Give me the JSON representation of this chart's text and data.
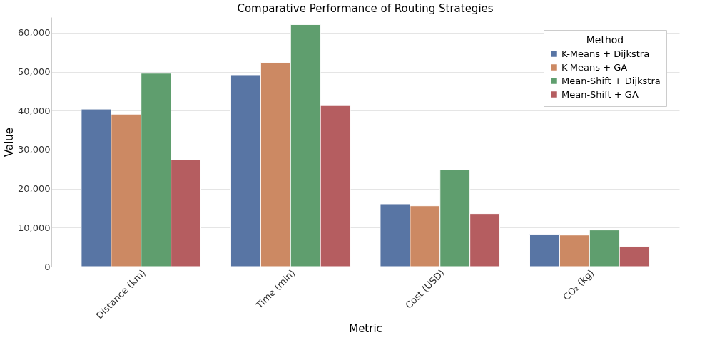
{
  "chart_data": {
    "type": "bar",
    "title": "Comparative Performance of Routing Strategies",
    "xlabel": "Metric",
    "ylabel": "Value",
    "legend_title": "Method",
    "categories": [
      "Distance (km)",
      "Time (min)",
      "Cost (USD)",
      "CO₂ (kg)"
    ],
    "series": [
      {
        "name": "K-Means + Dijkstra",
        "color": "#5875a4",
        "values": [
          40400,
          49200,
          16100,
          8300
        ]
      },
      {
        "name": "K-Means + GA",
        "color": "#cc8963",
        "values": [
          39100,
          52400,
          15600,
          8100
        ]
      },
      {
        "name": "Mean-Shift + Dijkstra",
        "color": "#5f9e6e",
        "values": [
          49600,
          62100,
          24800,
          9400
        ]
      },
      {
        "name": "Mean-Shift + GA",
        "color": "#b55d60",
        "values": [
          27400,
          41300,
          13600,
          5200
        ]
      }
    ],
    "ylim": [
      0,
      64000
    ],
    "yticks": [
      {
        "value": 0,
        "label": "0"
      },
      {
        "value": 10000,
        "label": "10,000"
      },
      {
        "value": 20000,
        "label": "20,000"
      },
      {
        "value": 30000,
        "label": "30,000"
      },
      {
        "value": 40000,
        "label": "40,000"
      },
      {
        "value": 50000,
        "label": "50,000"
      },
      {
        "value": 60000,
        "label": "60,000"
      }
    ],
    "grid": "y",
    "legend": "top right"
  }
}
